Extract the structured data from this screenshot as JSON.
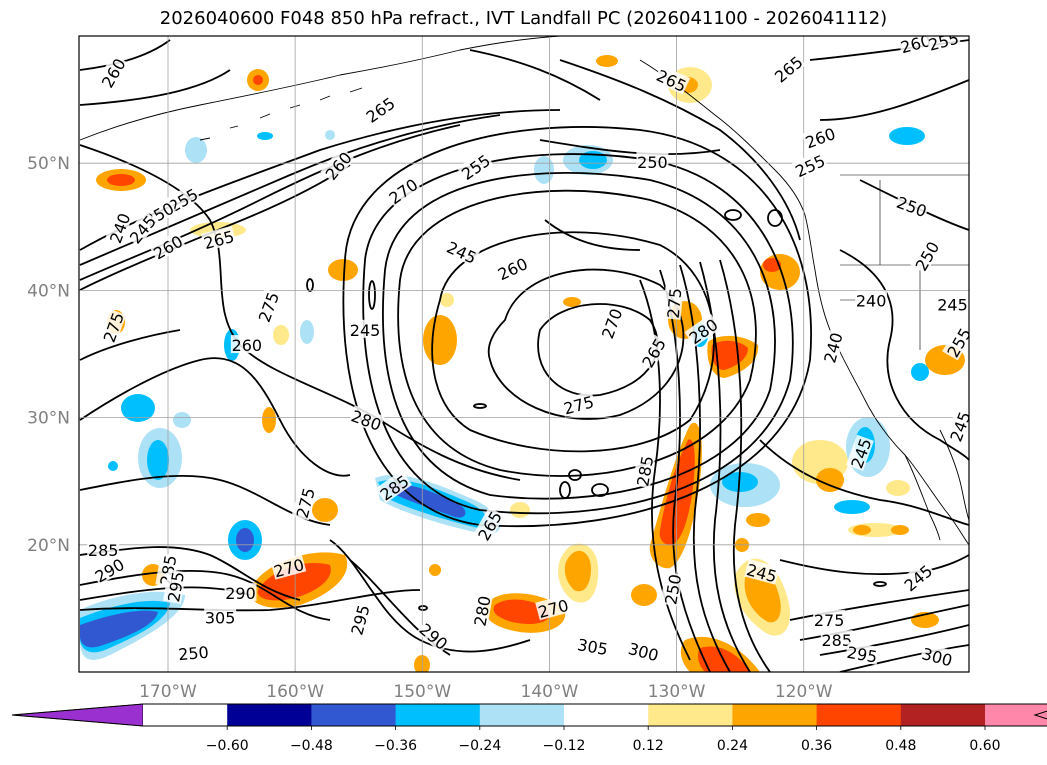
{
  "title": "2026040600 F048 850 hPa refract., IVT Landfall PC (2026041100 - 2026041112)",
  "map": {
    "lon_range": [
      -177,
      -107
    ],
    "lat_range": [
      10,
      60
    ],
    "lat_labels": [
      {
        "lat": 50,
        "text": "50°N"
      },
      {
        "lat": 40,
        "text": "40°N"
      },
      {
        "lat": 30,
        "text": "30°N"
      },
      {
        "lat": 20,
        "text": "20°N"
      }
    ],
    "lon_labels": [
      {
        "lon": -170,
        "text": "170°W"
      },
      {
        "lon": -160,
        "text": "160°W"
      },
      {
        "lon": -150,
        "text": "150°W"
      },
      {
        "lon": -140,
        "text": "140°W"
      },
      {
        "lon": -130,
        "text": "130°W"
      },
      {
        "lon": -120,
        "text": "120°W"
      }
    ],
    "grid_lines": true,
    "contour_labels": [
      {
        "text": "260",
        "lon": -174.3,
        "lat": 57.1,
        "rot": -60
      },
      {
        "text": "265",
        "lon": -153.3,
        "lat": 54.2,
        "rot": -35
      },
      {
        "text": "260",
        "lon": -156.6,
        "lat": 49.8,
        "rot": -50
      },
      {
        "text": "270",
        "lon": -151.5,
        "lat": 47.8,
        "rot": -35
      },
      {
        "text": "255",
        "lon": -145.8,
        "lat": 49.7,
        "rot": -35
      },
      {
        "text": "250",
        "lon": -131.9,
        "lat": 50.1,
        "rot": 0
      },
      {
        "text": "245",
        "lon": -146.9,
        "lat": 43.0,
        "rot": 25
      },
      {
        "text": "260",
        "lon": -142.9,
        "lat": 41.7,
        "rot": -25
      },
      {
        "text": "255",
        "lon": -168.8,
        "lat": 47.1,
        "rot": -30
      },
      {
        "text": "250",
        "lon": -170.7,
        "lat": 46.0,
        "rot": -30
      },
      {
        "text": "245",
        "lon": -172.0,
        "lat": 44.8,
        "rot": -50
      },
      {
        "text": "240",
        "lon": -173.8,
        "lat": 44.9,
        "rot": -70
      },
      {
        "text": "265",
        "lon": -166.0,
        "lat": 44.0,
        "rot": -15
      },
      {
        "text": "260",
        "lon": -170.0,
        "lat": 43.4,
        "rot": -30
      },
      {
        "text": "275",
        "lon": -162.1,
        "lat": 38.7,
        "rot": -70
      },
      {
        "text": "260",
        "lon": -163.8,
        "lat": 35.7,
        "rot": 0
      },
      {
        "text": "245",
        "lon": -154.5,
        "lat": 36.9,
        "rot": 0
      },
      {
        "text": "275",
        "lon": -174.3,
        "lat": 37.1,
        "rot": -70
      },
      {
        "text": "280",
        "lon": -154.4,
        "lat": 29.8,
        "rot": 20
      },
      {
        "text": "285",
        "lon": -152.2,
        "lat": 24.5,
        "rot": -35
      },
      {
        "text": "275",
        "lon": -159.2,
        "lat": 23.3,
        "rot": -75
      },
      {
        "text": "275",
        "lon": -137.7,
        "lat": 31.0,
        "rot": -15
      },
      {
        "text": "270",
        "lon": -135.1,
        "lat": 37.4,
        "rot": -70
      },
      {
        "text": "265",
        "lon": -131.8,
        "lat": 35.1,
        "rot": -60
      },
      {
        "text": "275",
        "lon": -130.2,
        "lat": 39.0,
        "rot": -85
      },
      {
        "text": "280",
        "lon": -127.9,
        "lat": 36.8,
        "rot": -35
      },
      {
        "text": "285",
        "lon": -132.5,
        "lat": 25.8,
        "rot": -80
      },
      {
        "text": "265",
        "lon": -144.7,
        "lat": 21.5,
        "rot": -60
      },
      {
        "text": "250",
        "lon": -130.3,
        "lat": 16.5,
        "rot": -80
      },
      {
        "text": "245",
        "lon": -123.3,
        "lat": 17.8,
        "rot": 15
      },
      {
        "text": "245",
        "lon": -111.0,
        "lat": 17.4,
        "rot": -40
      },
      {
        "text": "270",
        "lon": -160.5,
        "lat": 18.2,
        "rot": -15
      },
      {
        "text": "290",
        "lon": -164.3,
        "lat": 16.2,
        "rot": 0
      },
      {
        "text": "305",
        "lon": -165.9,
        "lat": 14.3,
        "rot": 0
      },
      {
        "text": "295",
        "lon": -154.9,
        "lat": 14.1,
        "rot": -75
      },
      {
        "text": "290",
        "lon": -149.1,
        "lat": 12.8,
        "rot": 40
      },
      {
        "text": "280",
        "lon": -145.3,
        "lat": 14.8,
        "rot": -80
      },
      {
        "text": "270",
        "lon": -139.7,
        "lat": 15.0,
        "rot": -15
      },
      {
        "text": "305",
        "lon": -136.6,
        "lat": 12.0,
        "rot": 10
      },
      {
        "text": "300",
        "lon": -132.6,
        "lat": 11.6,
        "rot": 15
      },
      {
        "text": "285",
        "lon": -175.1,
        "lat": 19.6,
        "rot": 0
      },
      {
        "text": "290",
        "lon": -174.6,
        "lat": 18.0,
        "rot": -30
      },
      {
        "text": "285",
        "lon": -170.0,
        "lat": 18.0,
        "rot": -80
      },
      {
        "text": "295",
        "lon": -169.4,
        "lat": 16.7,
        "rot": -80
      },
      {
        "text": "275",
        "lon": -118.0,
        "lat": 14.1,
        "rot": 0
      },
      {
        "text": "285",
        "lon": -117.4,
        "lat": 12.5,
        "rot": 0
      },
      {
        "text": "295",
        "lon": -115.4,
        "lat": 11.4,
        "rot": 10
      },
      {
        "text": "300",
        "lon": -109.5,
        "lat": 11.2,
        "rot": 15
      },
      {
        "text": "265",
        "lon": -130.4,
        "lat": 56.5,
        "rot": 25
      },
      {
        "text": "265",
        "lon": -121.2,
        "lat": 57.4,
        "rot": -40
      },
      {
        "text": "260",
        "lon": -118.7,
        "lat": 52.0,
        "rot": -20
      },
      {
        "text": "255",
        "lon": -119.5,
        "lat": 49.8,
        "rot": -25
      },
      {
        "text": "260",
        "lon": -111.2,
        "lat": 59.4,
        "rot": -15
      },
      {
        "text": "255",
        "lon": -109.0,
        "lat": 59.6,
        "rot": -15
      },
      {
        "text": "250",
        "lon": -111.5,
        "lat": 46.6,
        "rot": 20
      },
      {
        "text": "250",
        "lon": -110.3,
        "lat": 42.7,
        "rot": -60
      },
      {
        "text": "240",
        "lon": -114.7,
        "lat": 39.2,
        "rot": 0
      },
      {
        "text": "245",
        "lon": -108.3,
        "lat": 38.9,
        "rot": 0
      },
      {
        "text": "240",
        "lon": -117.7,
        "lat": 35.5,
        "rot": -75
      },
      {
        "text": "245",
        "lon": -115.5,
        "lat": 27.2,
        "rot": -70
      },
      {
        "text": "245",
        "lon": -107.7,
        "lat": 29.3,
        "rot": -70
      },
      {
        "text": "255",
        "lon": -107.8,
        "lat": 35.9,
        "rot": -60
      },
      {
        "text": "250",
        "lon": -168.0,
        "lat": 11.5,
        "rot": -5
      }
    ]
  },
  "colorbar": {
    "tick_labels": [
      "−0.60",
      "−0.48",
      "−0.36",
      "−0.24",
      "−0.12",
      "0.12",
      "0.24",
      "0.36",
      "0.48",
      "0.60"
    ],
    "colors": [
      "#ffffff",
      "#000096",
      "#3158d0",
      "#00bfff",
      "#ade2f6",
      "#ffffff",
      "#ffe98a",
      "#ffa500",
      "#ff4500",
      "#b22222",
      "#ff88aa"
    ],
    "under_color": "#9b30d0",
    "over_color": "#ff88aa"
  },
  "styles": {
    "label_gray": "#808080",
    "grid_color": "#a0a0a0",
    "contour_color": "#000000"
  }
}
